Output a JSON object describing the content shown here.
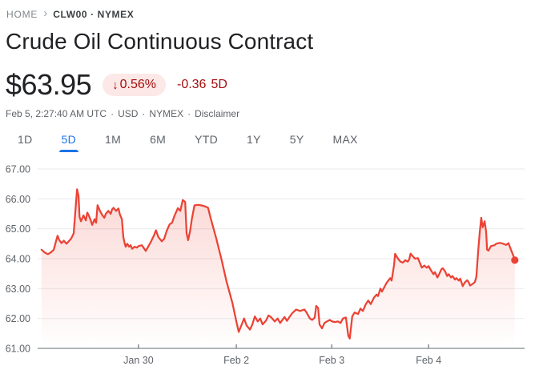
{
  "breadcrumb": {
    "home": "HOME",
    "symbol": "CLW00 · NYMEX",
    "chevron": "›"
  },
  "header": {
    "title": "Crude Oil Continuous Contract"
  },
  "quote": {
    "price": "$63.95",
    "change_direction": "down",
    "change_arrow": "↓",
    "change_percent": "0.56%",
    "change_absolute": "-0.36",
    "change_period": "5D",
    "datetime": "Feb 5, 2:27:40 AM UTC",
    "currency": "USD",
    "exchange": "NYMEX",
    "disclaimer_label": "Disclaimer",
    "separator": "·"
  },
  "theme": {
    "accent_blue": "#1a73e8",
    "negative_text_red": "#a50e0e",
    "badge_background": "#fce8e6",
    "text_primary": "#202124",
    "text_secondary": "#5f6368"
  },
  "tabs": [
    {
      "label": "1D",
      "active": false
    },
    {
      "label": "5D",
      "active": true
    },
    {
      "label": "1M",
      "active": false
    },
    {
      "label": "6M",
      "active": false
    },
    {
      "label": "YTD",
      "active": false
    },
    {
      "label": "1Y",
      "active": false
    },
    {
      "label": "5Y",
      "active": false
    },
    {
      "label": "MAX",
      "active": false
    }
  ],
  "chart_data": {
    "type": "area",
    "y_unit": "USD",
    "x_unit": "fraction of 5-day time axis",
    "ylim": [
      61,
      67
    ],
    "y_ticks": [
      "67.00",
      "66.00",
      "65.00",
      "64.00",
      "63.00",
      "62.00",
      "61.00"
    ],
    "x_ticks": [
      {
        "label": "Jan 30",
        "f": 0.207
      },
      {
        "label": "Feb 2",
        "f": 0.408
      },
      {
        "label": "Feb 3",
        "f": 0.604
      },
      {
        "label": "Feb 4",
        "f": 0.803
      }
    ],
    "grid": "horizontal",
    "line_color": "#ea4335",
    "area_top_color": "rgba(234,67,53,0.24)",
    "area_bottom_color": "rgba(234,67,53,0)",
    "axis_line_color": "#80868b",
    "gridline_color": "#e8eaed",
    "last_price": 63.95,
    "end_dot": {
      "f": 0.98,
      "price": 63.95
    },
    "points": [
      [
        0.008,
        64.3
      ],
      [
        0.015,
        64.2
      ],
      [
        0.021,
        64.15
      ],
      [
        0.028,
        64.22
      ],
      [
        0.033,
        64.3
      ],
      [
        0.038,
        64.6
      ],
      [
        0.041,
        64.77
      ],
      [
        0.044,
        64.63
      ],
      [
        0.049,
        64.52
      ],
      [
        0.054,
        64.6
      ],
      [
        0.059,
        64.5
      ],
      [
        0.064,
        64.58
      ],
      [
        0.069,
        64.68
      ],
      [
        0.074,
        64.85
      ],
      [
        0.081,
        66.32
      ],
      [
        0.084,
        66.1
      ],
      [
        0.086,
        65.4
      ],
      [
        0.089,
        65.25
      ],
      [
        0.094,
        65.45
      ],
      [
        0.099,
        65.28
      ],
      [
        0.102,
        65.54
      ],
      [
        0.105,
        65.45
      ],
      [
        0.109,
        65.28
      ],
      [
        0.112,
        65.13
      ],
      [
        0.117,
        65.32
      ],
      [
        0.12,
        65.2
      ],
      [
        0.123,
        65.79
      ],
      [
        0.128,
        65.6
      ],
      [
        0.133,
        65.45
      ],
      [
        0.137,
        65.37
      ],
      [
        0.14,
        65.5
      ],
      [
        0.145,
        65.6
      ],
      [
        0.15,
        65.5
      ],
      [
        0.153,
        65.65
      ],
      [
        0.156,
        65.7
      ],
      [
        0.161,
        65.6
      ],
      [
        0.166,
        65.68
      ],
      [
        0.169,
        65.47
      ],
      [
        0.173,
        65.32
      ],
      [
        0.176,
        64.72
      ],
      [
        0.179,
        64.5
      ],
      [
        0.181,
        64.4
      ],
      [
        0.184,
        64.5
      ],
      [
        0.188,
        64.4
      ],
      [
        0.191,
        64.45
      ],
      [
        0.194,
        64.33
      ],
      [
        0.199,
        64.4
      ],
      [
        0.204,
        64.37
      ],
      [
        0.207,
        64.42
      ],
      [
        0.214,
        64.45
      ],
      [
        0.219,
        64.33
      ],
      [
        0.222,
        64.26
      ],
      [
        0.227,
        64.4
      ],
      [
        0.232,
        64.55
      ],
      [
        0.239,
        64.78
      ],
      [
        0.243,
        64.95
      ],
      [
        0.248,
        64.72
      ],
      [
        0.255,
        64.58
      ],
      [
        0.26,
        64.67
      ],
      [
        0.265,
        64.93
      ],
      [
        0.271,
        65.15
      ],
      [
        0.276,
        65.2
      ],
      [
        0.281,
        65.43
      ],
      [
        0.288,
        65.69
      ],
      [
        0.293,
        65.6
      ],
      [
        0.298,
        65.96
      ],
      [
        0.303,
        65.9
      ],
      [
        0.306,
        64.85
      ],
      [
        0.309,
        64.62
      ],
      [
        0.313,
        64.92
      ],
      [
        0.317,
        65.35
      ],
      [
        0.322,
        65.78
      ],
      [
        0.329,
        65.8
      ],
      [
        0.337,
        65.78
      ],
      [
        0.345,
        65.74
      ],
      [
        0.35,
        65.7
      ],
      [
        0.355,
        65.38
      ],
      [
        0.367,
        64.67
      ],
      [
        0.378,
        63.95
      ],
      [
        0.388,
        63.23
      ],
      [
        0.4,
        62.52
      ],
      [
        0.408,
        61.9
      ],
      [
        0.413,
        61.55
      ],
      [
        0.419,
        61.8
      ],
      [
        0.424,
        62.0
      ],
      [
        0.429,
        61.77
      ],
      [
        0.436,
        61.63
      ],
      [
        0.441,
        61.8
      ],
      [
        0.446,
        62.07
      ],
      [
        0.452,
        61.9
      ],
      [
        0.457,
        62.0
      ],
      [
        0.462,
        61.8
      ],
      [
        0.469,
        61.93
      ],
      [
        0.474,
        62.1
      ],
      [
        0.479,
        62.05
      ],
      [
        0.487,
        61.9
      ],
      [
        0.493,
        62.0
      ],
      [
        0.498,
        61.85
      ],
      [
        0.507,
        62.05
      ],
      [
        0.512,
        61.92
      ],
      [
        0.516,
        62.02
      ],
      [
        0.523,
        62.18
      ],
      [
        0.531,
        62.3
      ],
      [
        0.539,
        62.25
      ],
      [
        0.548,
        62.3
      ],
      [
        0.553,
        62.18
      ],
      [
        0.559,
        62.0
      ],
      [
        0.564,
        61.95
      ],
      [
        0.569,
        62.03
      ],
      [
        0.572,
        62.42
      ],
      [
        0.576,
        62.35
      ],
      [
        0.579,
        61.8
      ],
      [
        0.584,
        61.67
      ],
      [
        0.589,
        61.85
      ],
      [
        0.594,
        61.9
      ],
      [
        0.6,
        61.95
      ],
      [
        0.605,
        61.9
      ],
      [
        0.61,
        61.88
      ],
      [
        0.617,
        61.9
      ],
      [
        0.622,
        61.85
      ],
      [
        0.627,
        62.0
      ],
      [
        0.633,
        62.03
      ],
      [
        0.638,
        61.42
      ],
      [
        0.641,
        61.33
      ],
      [
        0.646,
        62.07
      ],
      [
        0.651,
        62.2
      ],
      [
        0.658,
        62.15
      ],
      [
        0.663,
        62.33
      ],
      [
        0.668,
        62.25
      ],
      [
        0.674,
        62.48
      ],
      [
        0.679,
        62.6
      ],
      [
        0.684,
        62.48
      ],
      [
        0.691,
        62.7
      ],
      [
        0.696,
        62.8
      ],
      [
        0.699,
        62.75
      ],
      [
        0.704,
        63.0
      ],
      [
        0.707,
        62.9
      ],
      [
        0.712,
        63.05
      ],
      [
        0.717,
        63.2
      ],
      [
        0.724,
        63.35
      ],
      [
        0.727,
        63.27
      ],
      [
        0.732,
        63.8
      ],
      [
        0.734,
        64.16
      ],
      [
        0.74,
        64.0
      ],
      [
        0.745,
        63.9
      ],
      [
        0.75,
        63.87
      ],
      [
        0.755,
        63.95
      ],
      [
        0.76,
        63.9
      ],
      [
        0.763,
        63.97
      ],
      [
        0.766,
        64.17
      ],
      [
        0.771,
        64.07
      ],
      [
        0.775,
        64.0
      ],
      [
        0.781,
        64.02
      ],
      [
        0.786,
        63.82
      ],
      [
        0.789,
        63.7
      ],
      [
        0.794,
        63.77
      ],
      [
        0.799,
        63.7
      ],
      [
        0.803,
        63.75
      ],
      [
        0.808,
        63.6
      ],
      [
        0.813,
        63.48
      ],
      [
        0.816,
        63.55
      ],
      [
        0.821,
        63.37
      ],
      [
        0.824,
        63.46
      ],
      [
        0.829,
        63.64
      ],
      [
        0.832,
        63.68
      ],
      [
        0.837,
        63.57
      ],
      [
        0.841,
        63.42
      ],
      [
        0.844,
        63.48
      ],
      [
        0.849,
        63.37
      ],
      [
        0.852,
        63.42
      ],
      [
        0.857,
        63.3
      ],
      [
        0.86,
        63.35
      ],
      [
        0.865,
        63.27
      ],
      [
        0.868,
        63.33
      ],
      [
        0.873,
        63.08
      ],
      [
        0.877,
        63.2
      ],
      [
        0.882,
        63.28
      ],
      [
        0.885,
        63.22
      ],
      [
        0.888,
        63.1
      ],
      [
        0.893,
        63.15
      ],
      [
        0.898,
        63.22
      ],
      [
        0.901,
        63.4
      ],
      [
        0.905,
        64.3
      ],
      [
        0.908,
        64.9
      ],
      [
        0.911,
        65.37
      ],
      [
        0.914,
        65.05
      ],
      [
        0.918,
        65.25
      ],
      [
        0.921,
        64.9
      ],
      [
        0.923,
        64.3
      ],
      [
        0.926,
        64.27
      ],
      [
        0.931,
        64.42
      ],
      [
        0.938,
        64.45
      ],
      [
        0.942,
        64.5
      ],
      [
        0.949,
        64.53
      ],
      [
        0.956,
        64.5
      ],
      [
        0.962,
        64.46
      ],
      [
        0.967,
        64.52
      ],
      [
        0.972,
        64.3
      ],
      [
        0.977,
        64.1
      ],
      [
        0.98,
        63.95
      ]
    ]
  }
}
